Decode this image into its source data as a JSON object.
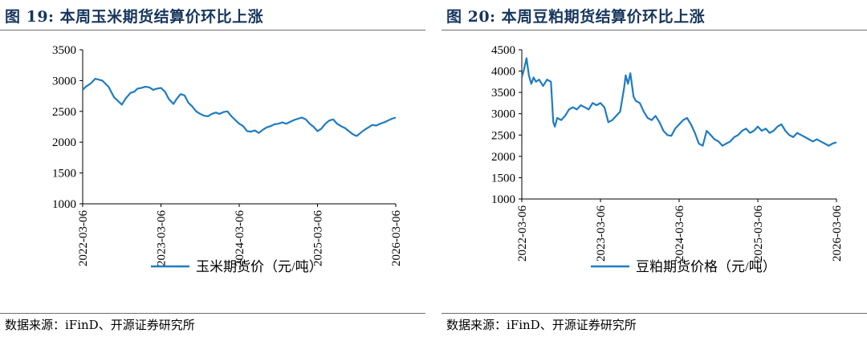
{
  "page": {
    "background": "#ffffff",
    "title_color": "#17365d",
    "line_color": "#1f7cc1",
    "rule_color": "#6e6e6e"
  },
  "source_text": "数据来源：iFinD、开源证券研究所",
  "chart_data": [
    {
      "figure_title": "图 19:  本周玉米期货结算价环比上涨",
      "type": "line",
      "legend": "玉米期货价（元/吨）",
      "legend_position": "bottom",
      "ylim": [
        1000,
        3500
      ],
      "yticks": [
        "1000",
        "1500",
        "2000",
        "2500",
        "3000",
        "3500"
      ],
      "xrange": [
        "2022-03-06",
        "2026-03-06"
      ],
      "xticks": [
        "2022-03-06",
        "2023-03-06",
        "2024-03-06",
        "2025-03-06",
        "2026-03-06"
      ],
      "series": [
        {
          "name": "玉米期货价（元/吨）",
          "x": [
            0,
            0.04,
            0.1,
            0.16,
            0.25,
            0.33,
            0.4,
            0.5,
            0.55,
            0.61,
            0.66,
            0.7,
            0.75,
            0.8,
            0.85,
            0.9,
            0.95,
            1.0,
            1.05,
            1.1,
            1.16,
            1.2,
            1.25,
            1.3,
            1.35,
            1.4,
            1.45,
            1.5,
            1.55,
            1.6,
            1.65,
            1.7,
            1.75,
            1.8,
            1.85,
            1.9,
            1.95,
            2.0,
            2.05,
            2.1,
            2.15,
            2.2,
            2.25,
            2.3,
            2.35,
            2.4,
            2.45,
            2.5,
            2.55,
            2.6,
            2.65,
            2.7,
            2.75,
            2.8,
            2.85,
            2.9,
            2.95,
            3.0,
            3.05,
            3.1,
            3.15,
            3.2,
            3.25,
            3.3,
            3.35,
            3.4,
            3.45,
            3.5,
            3.55,
            3.6,
            3.65,
            3.7,
            3.75,
            3.8,
            3.85,
            3.9,
            3.95,
            4.0
          ],
          "values": [
            2850,
            2900,
            2950,
            3030,
            3000,
            2900,
            2730,
            2610,
            2710,
            2800,
            2820,
            2870,
            2880,
            2900,
            2890,
            2850,
            2870,
            2880,
            2820,
            2700,
            2620,
            2700,
            2780,
            2760,
            2640,
            2580,
            2500,
            2460,
            2430,
            2420,
            2460,
            2480,
            2460,
            2490,
            2500,
            2420,
            2360,
            2300,
            2260,
            2180,
            2170,
            2190,
            2150,
            2200,
            2240,
            2260,
            2290,
            2300,
            2320,
            2300,
            2330,
            2360,
            2380,
            2400,
            2370,
            2300,
            2250,
            2180,
            2220,
            2300,
            2350,
            2370,
            2300,
            2260,
            2230,
            2180,
            2130,
            2100,
            2150,
            2200,
            2240,
            2280,
            2270,
            2300,
            2320,
            2350,
            2380,
            2400
          ]
        }
      ]
    },
    {
      "figure_title": "图 20:  本周豆粕期货结算价环比上涨",
      "type": "line",
      "legend": "豆粕期货价格（元/吨）",
      "legend_position": "bottom",
      "ylim": [
        1000,
        4500
      ],
      "yticks": [
        "1000",
        "1500",
        "2000",
        "2500",
        "3000",
        "3500",
        "4000",
        "4500"
      ],
      "xrange": [
        "2022-03-06",
        "2026-03-06"
      ],
      "xticks": [
        "2022-03-06",
        "2023-03-06",
        "2024-03-06",
        "2025-03-06",
        "2026-03-06"
      ],
      "series": [
        {
          "name": "豆粕期货价格（元/吨）",
          "x": [
            0,
            0.03,
            0.06,
            0.09,
            0.12,
            0.15,
            0.18,
            0.22,
            0.27,
            0.32,
            0.37,
            0.4,
            0.42,
            0.45,
            0.5,
            0.55,
            0.6,
            0.65,
            0.7,
            0.75,
            0.8,
            0.85,
            0.9,
            0.95,
            1.0,
            1.05,
            1.1,
            1.15,
            1.2,
            1.25,
            1.3,
            1.32,
            1.35,
            1.38,
            1.42,
            1.45,
            1.5,
            1.55,
            1.6,
            1.65,
            1.7,
            1.75,
            1.8,
            1.85,
            1.9,
            1.95,
            2.0,
            2.05,
            2.1,
            2.15,
            2.2,
            2.25,
            2.3,
            2.35,
            2.4,
            2.45,
            2.5,
            2.55,
            2.6,
            2.65,
            2.7,
            2.75,
            2.8,
            2.85,
            2.9,
            2.95,
            3.0,
            3.05,
            3.1,
            3.15,
            3.2,
            3.25,
            3.3,
            3.35,
            3.4,
            3.45,
            3.5,
            3.55,
            3.6,
            3.65,
            3.7,
            3.75,
            3.8,
            3.85,
            3.9,
            3.95,
            4.0
          ],
          "values": [
            3850,
            4050,
            4300,
            3900,
            3700,
            3850,
            3750,
            3800,
            3650,
            3800,
            3750,
            2800,
            2700,
            2900,
            2850,
            2950,
            3100,
            3150,
            3100,
            3200,
            3150,
            3100,
            3250,
            3200,
            3250,
            3150,
            2800,
            2850,
            2950,
            3050,
            3600,
            3900,
            3700,
            3950,
            3400,
            3300,
            3250,
            3050,
            2900,
            2850,
            2950,
            2800,
            2600,
            2500,
            2480,
            2650,
            2750,
            2850,
            2900,
            2750,
            2550,
            2300,
            2250,
            2600,
            2500,
            2400,
            2350,
            2250,
            2300,
            2350,
            2450,
            2500,
            2600,
            2650,
            2550,
            2600,
            2700,
            2600,
            2650,
            2550,
            2600,
            2700,
            2750,
            2600,
            2500,
            2450,
            2550,
            2500,
            2450,
            2400,
            2350,
            2400,
            2350,
            2300,
            2250,
            2300,
            2330
          ]
        }
      ]
    }
  ]
}
